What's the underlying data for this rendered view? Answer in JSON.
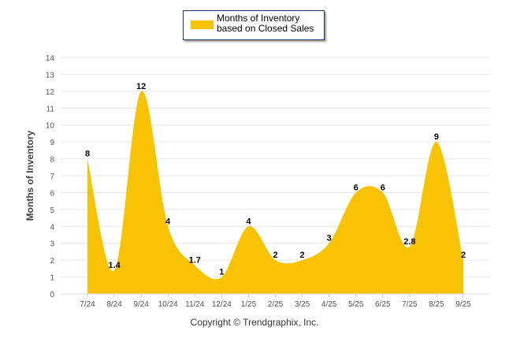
{
  "chart_data": {
    "type": "area",
    "title": "",
    "xlabel": "",
    "ylabel": "Months of Inventory",
    "ylim": [
      0,
      14
    ],
    "yticks": [
      0,
      1,
      2,
      3,
      4,
      5,
      6,
      7,
      8,
      9,
      10,
      11,
      12,
      13,
      14
    ],
    "grid": true,
    "legend_position": "top-center",
    "categories": [
      "7/24",
      "8/24",
      "9/24",
      "10/24",
      "11/24",
      "12/24",
      "1/25",
      "2/25",
      "3/25",
      "4/25",
      "5/25",
      "6/25",
      "7/25",
      "8/25",
      "9/25"
    ],
    "series": [
      {
        "name": "Months of Inventory based on Closed Sales",
        "color": "#f7c304",
        "values": [
          8,
          1.4,
          12,
          4,
          1.7,
          1,
          4,
          2,
          2,
          3,
          6,
          6,
          2.8,
          9,
          2
        ],
        "labels": [
          "8",
          "1.4",
          "12",
          "4",
          "1.7",
          "1",
          "4",
          "2",
          "2",
          "3",
          "6",
          "6",
          "2.8",
          "9",
          "2"
        ]
      }
    ]
  },
  "legend": {
    "label": "Months of Inventory based on Closed Sales"
  },
  "footer": {
    "copyright": "Copyright © Trendgraphix, Inc."
  }
}
